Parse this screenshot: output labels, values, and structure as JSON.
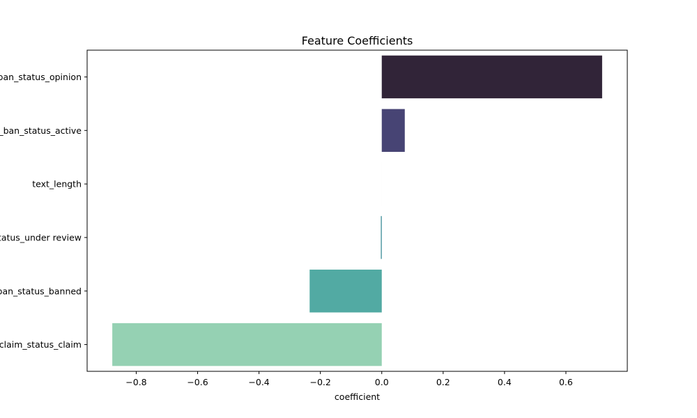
{
  "chart_data": {
    "type": "bar",
    "orientation": "horizontal",
    "title": "Feature Coefficients",
    "xlabel": "coefficient",
    "ylabel": "",
    "xlim": [
      -0.96,
      0.8
    ],
    "xticks": [
      -0.8,
      -0.6,
      -0.4,
      -0.2,
      0.0,
      0.2,
      0.4,
      0.6
    ],
    "xtick_labels": [
      "−0.8",
      "−0.6",
      "−0.4",
      "−0.2",
      "0.0",
      "0.2",
      "0.4",
      "0.6"
    ],
    "grid": false,
    "categories": [
      "author_ban_status_opinion",
      "author_ban_status_active",
      "text_length",
      "author_ban_status_under review",
      "author_ban_status_banned",
      "claim_status_claim"
    ],
    "values": [
      0.718,
      0.075,
      0.0,
      -0.003,
      -0.235,
      -0.878
    ],
    "colors": [
      "#312438",
      "#474474",
      "#3d6e8a",
      "#3d8e99",
      "#52aaa3",
      "#95d1b3"
    ]
  }
}
